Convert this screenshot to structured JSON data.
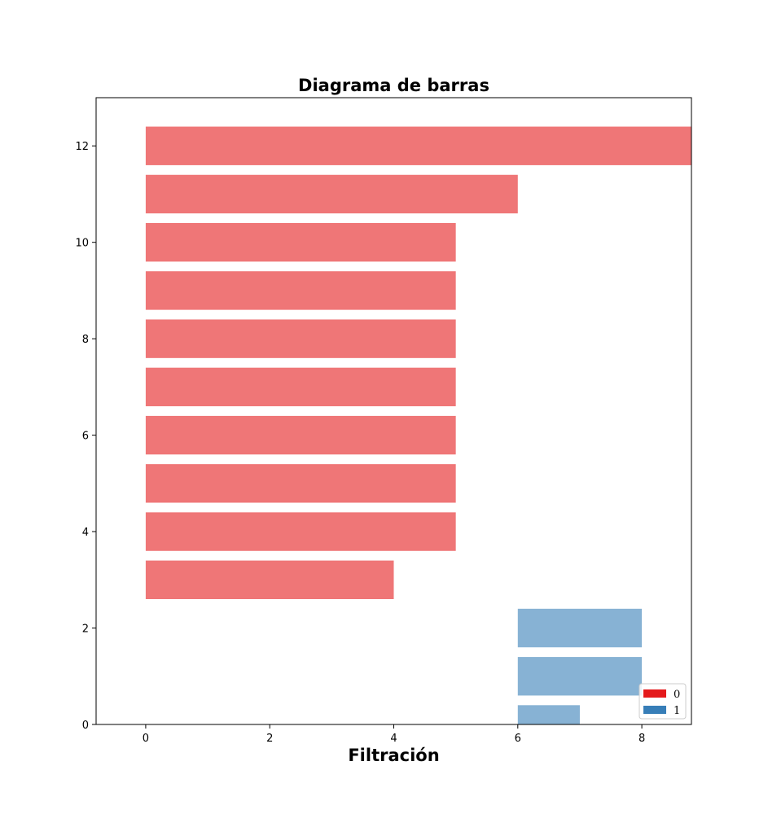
{
  "chart_data": {
    "type": "bar",
    "orientation": "horizontal",
    "title": "Diagrama de barras",
    "xlabel": "Filtración",
    "ylabel": "",
    "xlim": [
      -0.8,
      8.8
    ],
    "ylim": [
      0,
      13
    ],
    "xticks": [
      "0",
      "2",
      "4",
      "6",
      "8"
    ],
    "yticks": [
      "0",
      "2",
      "4",
      "6",
      "8",
      "10",
      "12"
    ],
    "grid": false,
    "legend_position": "bottom-right",
    "bar_height": 0.8,
    "series": [
      {
        "name": "0",
        "color": "#e41a1c",
        "opacity": 0.6,
        "bars": [
          {
            "y": 3,
            "left": 0,
            "width": 4
          },
          {
            "y": 4,
            "left": 0,
            "width": 5
          },
          {
            "y": 5,
            "left": 0,
            "width": 5
          },
          {
            "y": 6,
            "left": 0,
            "width": 5
          },
          {
            "y": 7,
            "left": 0,
            "width": 5
          },
          {
            "y": 8,
            "left": 0,
            "width": 5
          },
          {
            "y": 9,
            "left": 0,
            "width": 5
          },
          {
            "y": 10,
            "left": 0,
            "width": 5
          },
          {
            "y": 11,
            "left": 0,
            "width": 6
          },
          {
            "y": 12,
            "left": 0,
            "width": 9
          }
        ]
      },
      {
        "name": "1",
        "color": "#377eb8",
        "opacity": 0.6,
        "bars": [
          {
            "y": 0,
            "left": 6,
            "width": 1
          },
          {
            "y": 1,
            "left": 6,
            "width": 2
          },
          {
            "y": 2,
            "left": 6,
            "width": 2
          }
        ]
      }
    ]
  }
}
